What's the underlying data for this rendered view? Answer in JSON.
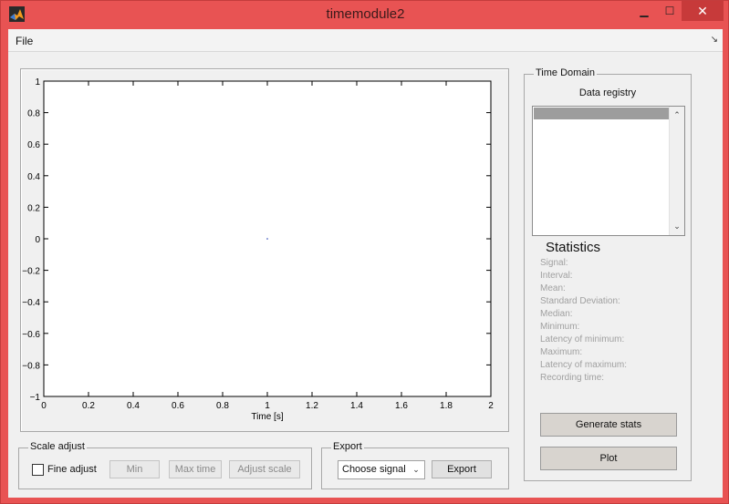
{
  "window": {
    "title": "timemodule2",
    "controls": {
      "minimize": "▁",
      "maximize": "☐",
      "close": "✕"
    }
  },
  "menu": {
    "file": "File",
    "dock": "↘"
  },
  "chart_data": {
    "type": "line",
    "title": "",
    "xlabel": "Time [s]",
    "ylabel": "",
    "xlim": [
      0,
      2
    ],
    "ylim": [
      -1,
      1
    ],
    "x_ticks": [
      0,
      0.2,
      0.4,
      0.6,
      0.8,
      1,
      1.2,
      1.4,
      1.6,
      1.8,
      2
    ],
    "x_tick_labels": [
      "0",
      "0.2",
      "0.4",
      "0.6",
      "0.8",
      "1",
      "1.2",
      "1.4",
      "1.6",
      "1.8",
      "2"
    ],
    "y_ticks": [
      -1,
      -0.8,
      -0.6,
      -0.4,
      -0.2,
      0,
      0.2,
      0.4,
      0.6,
      0.8,
      1
    ],
    "y_tick_labels": [
      "−1",
      "−0.8",
      "−0.6",
      "−0.4",
      "−0.2",
      "0",
      "0.2",
      "0.4",
      "0.6",
      "0.8",
      "1"
    ],
    "grid": false,
    "series": [
      {
        "name": "signal",
        "x": [
          1
        ],
        "y": [
          0
        ]
      }
    ]
  },
  "scale_adjust": {
    "title": "Scale adjust",
    "fine_adjust_label": "Fine adjust",
    "fine_adjust_checked": false,
    "min_label": "Min",
    "max_time_label": "Max time",
    "adjust_scale_label": "Adjust scale"
  },
  "export": {
    "title": "Export",
    "selected_option": "Choose signal",
    "arrow": "⌄",
    "button_label": "Export"
  },
  "time_domain": {
    "title": "Time Domain",
    "registry_label": "Data registry",
    "scroll_up": "⌃",
    "scroll_down": "⌄",
    "statistics_title": "Statistics",
    "stats": [
      "Signal:",
      "Interval:",
      "Mean:",
      "Standard Deviation:",
      "Median:",
      "Minimum:",
      "Latency of minimum:",
      "Maximum:",
      "Latency of maximum:",
      "Recording time:"
    ],
    "generate_label": "Generate stats",
    "plot_label": "Plot"
  }
}
